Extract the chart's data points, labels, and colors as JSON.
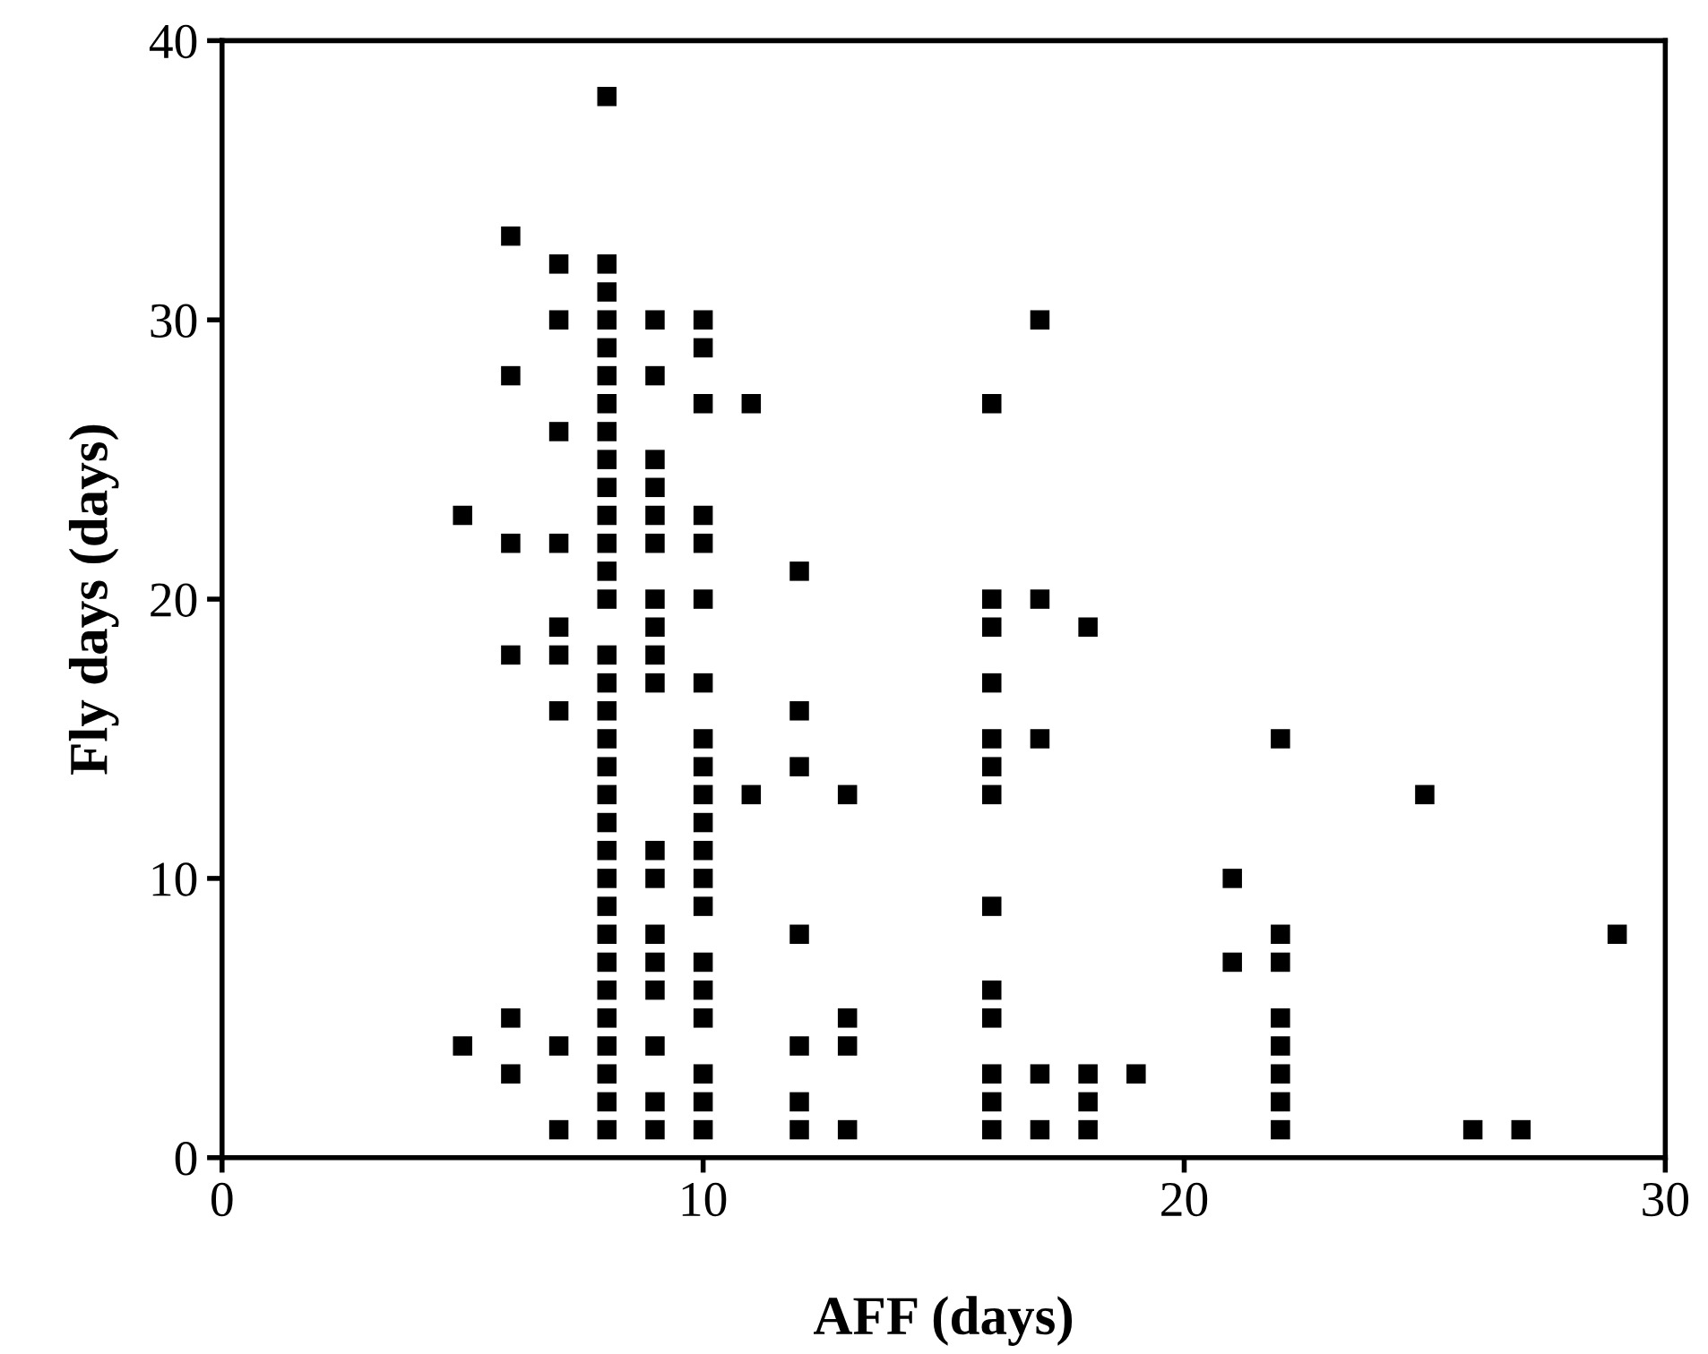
{
  "chart_data": {
    "type": "scatter",
    "xlabel": "AFF (days)",
    "ylabel": "Fly days (days)",
    "marker": "square",
    "grid": false,
    "legend": false,
    "xlim": [
      0,
      30
    ],
    "xticks": [
      0,
      10,
      20,
      30
    ],
    "ylim": [
      0,
      40
    ],
    "yticks": [
      0,
      10,
      20,
      30,
      40
    ],
    "series": [
      {
        "color": "#000000",
        "x": [
          5,
          5,
          6,
          6,
          6,
          6,
          6,
          6,
          7,
          7,
          7,
          7,
          7,
          7,
          7,
          7,
          7,
          8,
          8,
          8,
          8,
          8,
          8,
          8,
          8,
          8,
          8,
          8,
          8,
          8,
          8,
          8,
          8,
          8,
          8,
          8,
          8,
          8,
          8,
          8,
          8,
          8,
          8,
          8,
          8,
          8,
          8,
          8,
          8,
          9,
          9,
          9,
          9,
          9,
          9,
          9,
          9,
          9,
          9,
          9,
          9,
          9,
          9,
          9,
          9,
          9,
          9,
          10,
          10,
          10,
          10,
          10,
          10,
          10,
          10,
          10,
          10,
          10,
          10,
          10,
          10,
          10,
          10,
          10,
          10,
          10,
          10,
          11,
          11,
          12,
          12,
          12,
          12,
          12,
          12,
          12,
          13,
          13,
          13,
          13,
          16,
          16,
          16,
          16,
          16,
          16,
          16,
          16,
          16,
          16,
          16,
          16,
          16,
          17,
          17,
          17,
          17,
          17,
          18,
          18,
          18,
          18,
          19,
          21,
          21,
          22,
          22,
          22,
          22,
          22,
          22,
          22,
          22,
          25,
          26,
          27,
          29
        ],
        "values": [
          23,
          4,
          33,
          28,
          22,
          18,
          5,
          3,
          32,
          30,
          26,
          22,
          19,
          18,
          16,
          4,
          1,
          38,
          32,
          31,
          30,
          29,
          28,
          27,
          26,
          25,
          24,
          23,
          22,
          21,
          20,
          18,
          17,
          16,
          15,
          14,
          13,
          12,
          11,
          10,
          9,
          8,
          7,
          6,
          5,
          4,
          3,
          2,
          1,
          30,
          28,
          25,
          24,
          23,
          22,
          20,
          19,
          18,
          17,
          11,
          10,
          8,
          7,
          6,
          4,
          2,
          1,
          30,
          29,
          27,
          23,
          22,
          20,
          17,
          15,
          14,
          13,
          12,
          11,
          10,
          9,
          7,
          6,
          5,
          3,
          2,
          1,
          27,
          13,
          21,
          16,
          14,
          8,
          4,
          2,
          1,
          13,
          5,
          4,
          1,
          27,
          20,
          19,
          17,
          15,
          14,
          13,
          9,
          6,
          5,
          3,
          2,
          1,
          30,
          20,
          15,
          3,
          1,
          19,
          3,
          2,
          1,
          3,
          10,
          7,
          15,
          8,
          7,
          5,
          4,
          3,
          2,
          1,
          13,
          1,
          1,
          8
        ]
      }
    ]
  }
}
